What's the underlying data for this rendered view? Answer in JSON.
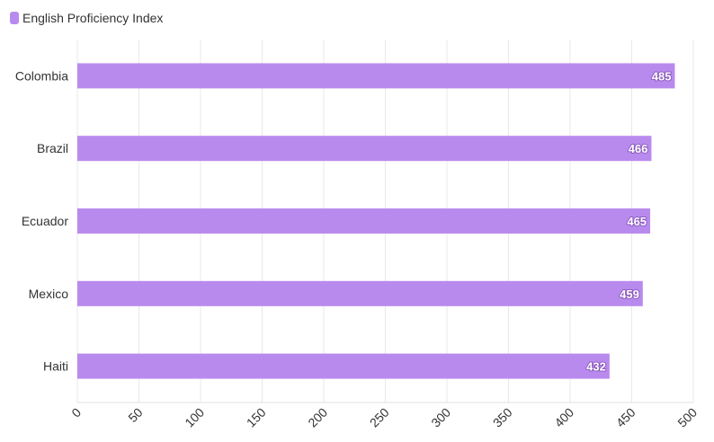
{
  "chart_data": {
    "type": "bar",
    "orientation": "horizontal",
    "categories": [
      "Colombia",
      "Brazil",
      "Ecuador",
      "Mexico",
      "Haiti"
    ],
    "series": [
      {
        "name": "English Proficiency Index",
        "values": [
          485,
          466,
          465,
          459,
          432
        ],
        "color": "#b98aee"
      }
    ],
    "xlim": [
      0,
      500
    ],
    "x_ticks": [
      0,
      50,
      100,
      150,
      200,
      250,
      300,
      350,
      400,
      450,
      500
    ],
    "x_tick_rotation": "-45deg",
    "grid": "vertical",
    "grid_color": "#e8e8e8",
    "legend_placement": "top-left",
    "data_labels": "inside-end"
  }
}
